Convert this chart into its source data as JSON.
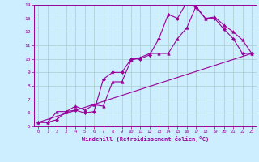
{
  "title": "",
  "xlabel": "Windchill (Refroidissement éolien,°C)",
  "ylabel": "",
  "background_color": "#cceeff",
  "line_color": "#990099",
  "grid_color": "#aacccc",
  "xlim": [
    -0.5,
    23.5
  ],
  "ylim": [
    5,
    14
  ],
  "xticks": [
    0,
    1,
    2,
    3,
    4,
    5,
    6,
    7,
    8,
    9,
    10,
    11,
    12,
    13,
    14,
    15,
    16,
    17,
    18,
    19,
    20,
    21,
    22,
    23
  ],
  "yticks": [
    5,
    6,
    7,
    8,
    9,
    10,
    11,
    12,
    13,
    14
  ],
  "line1_x": [
    0,
    1,
    2,
    3,
    4,
    5,
    6,
    7,
    8,
    9,
    10,
    11,
    12,
    13,
    14,
    15,
    16,
    17,
    18,
    19,
    20,
    21,
    22,
    23
  ],
  "line1_y": [
    5.3,
    5.3,
    5.5,
    6.1,
    6.2,
    6.0,
    6.1,
    8.5,
    9.0,
    9.0,
    10.0,
    10.0,
    10.3,
    11.5,
    13.3,
    13.0,
    14.2,
    13.8,
    13.0,
    13.0,
    12.2,
    11.5,
    10.4,
    10.4
  ],
  "line2_x": [
    0,
    1,
    2,
    3,
    4,
    5,
    6,
    7,
    8,
    9,
    10,
    11,
    12,
    13,
    14,
    15,
    16,
    17,
    18,
    19,
    20,
    21,
    22,
    23
  ],
  "line2_y": [
    5.3,
    5.3,
    6.1,
    6.1,
    6.5,
    6.2,
    6.6,
    6.5,
    8.3,
    8.3,
    9.9,
    10.1,
    10.4,
    10.4,
    10.4,
    11.5,
    12.3,
    13.9,
    13.0,
    13.1,
    12.5,
    12.0,
    11.4,
    10.4
  ],
  "line3_x": [
    0,
    23
  ],
  "line3_y": [
    5.3,
    10.4
  ]
}
